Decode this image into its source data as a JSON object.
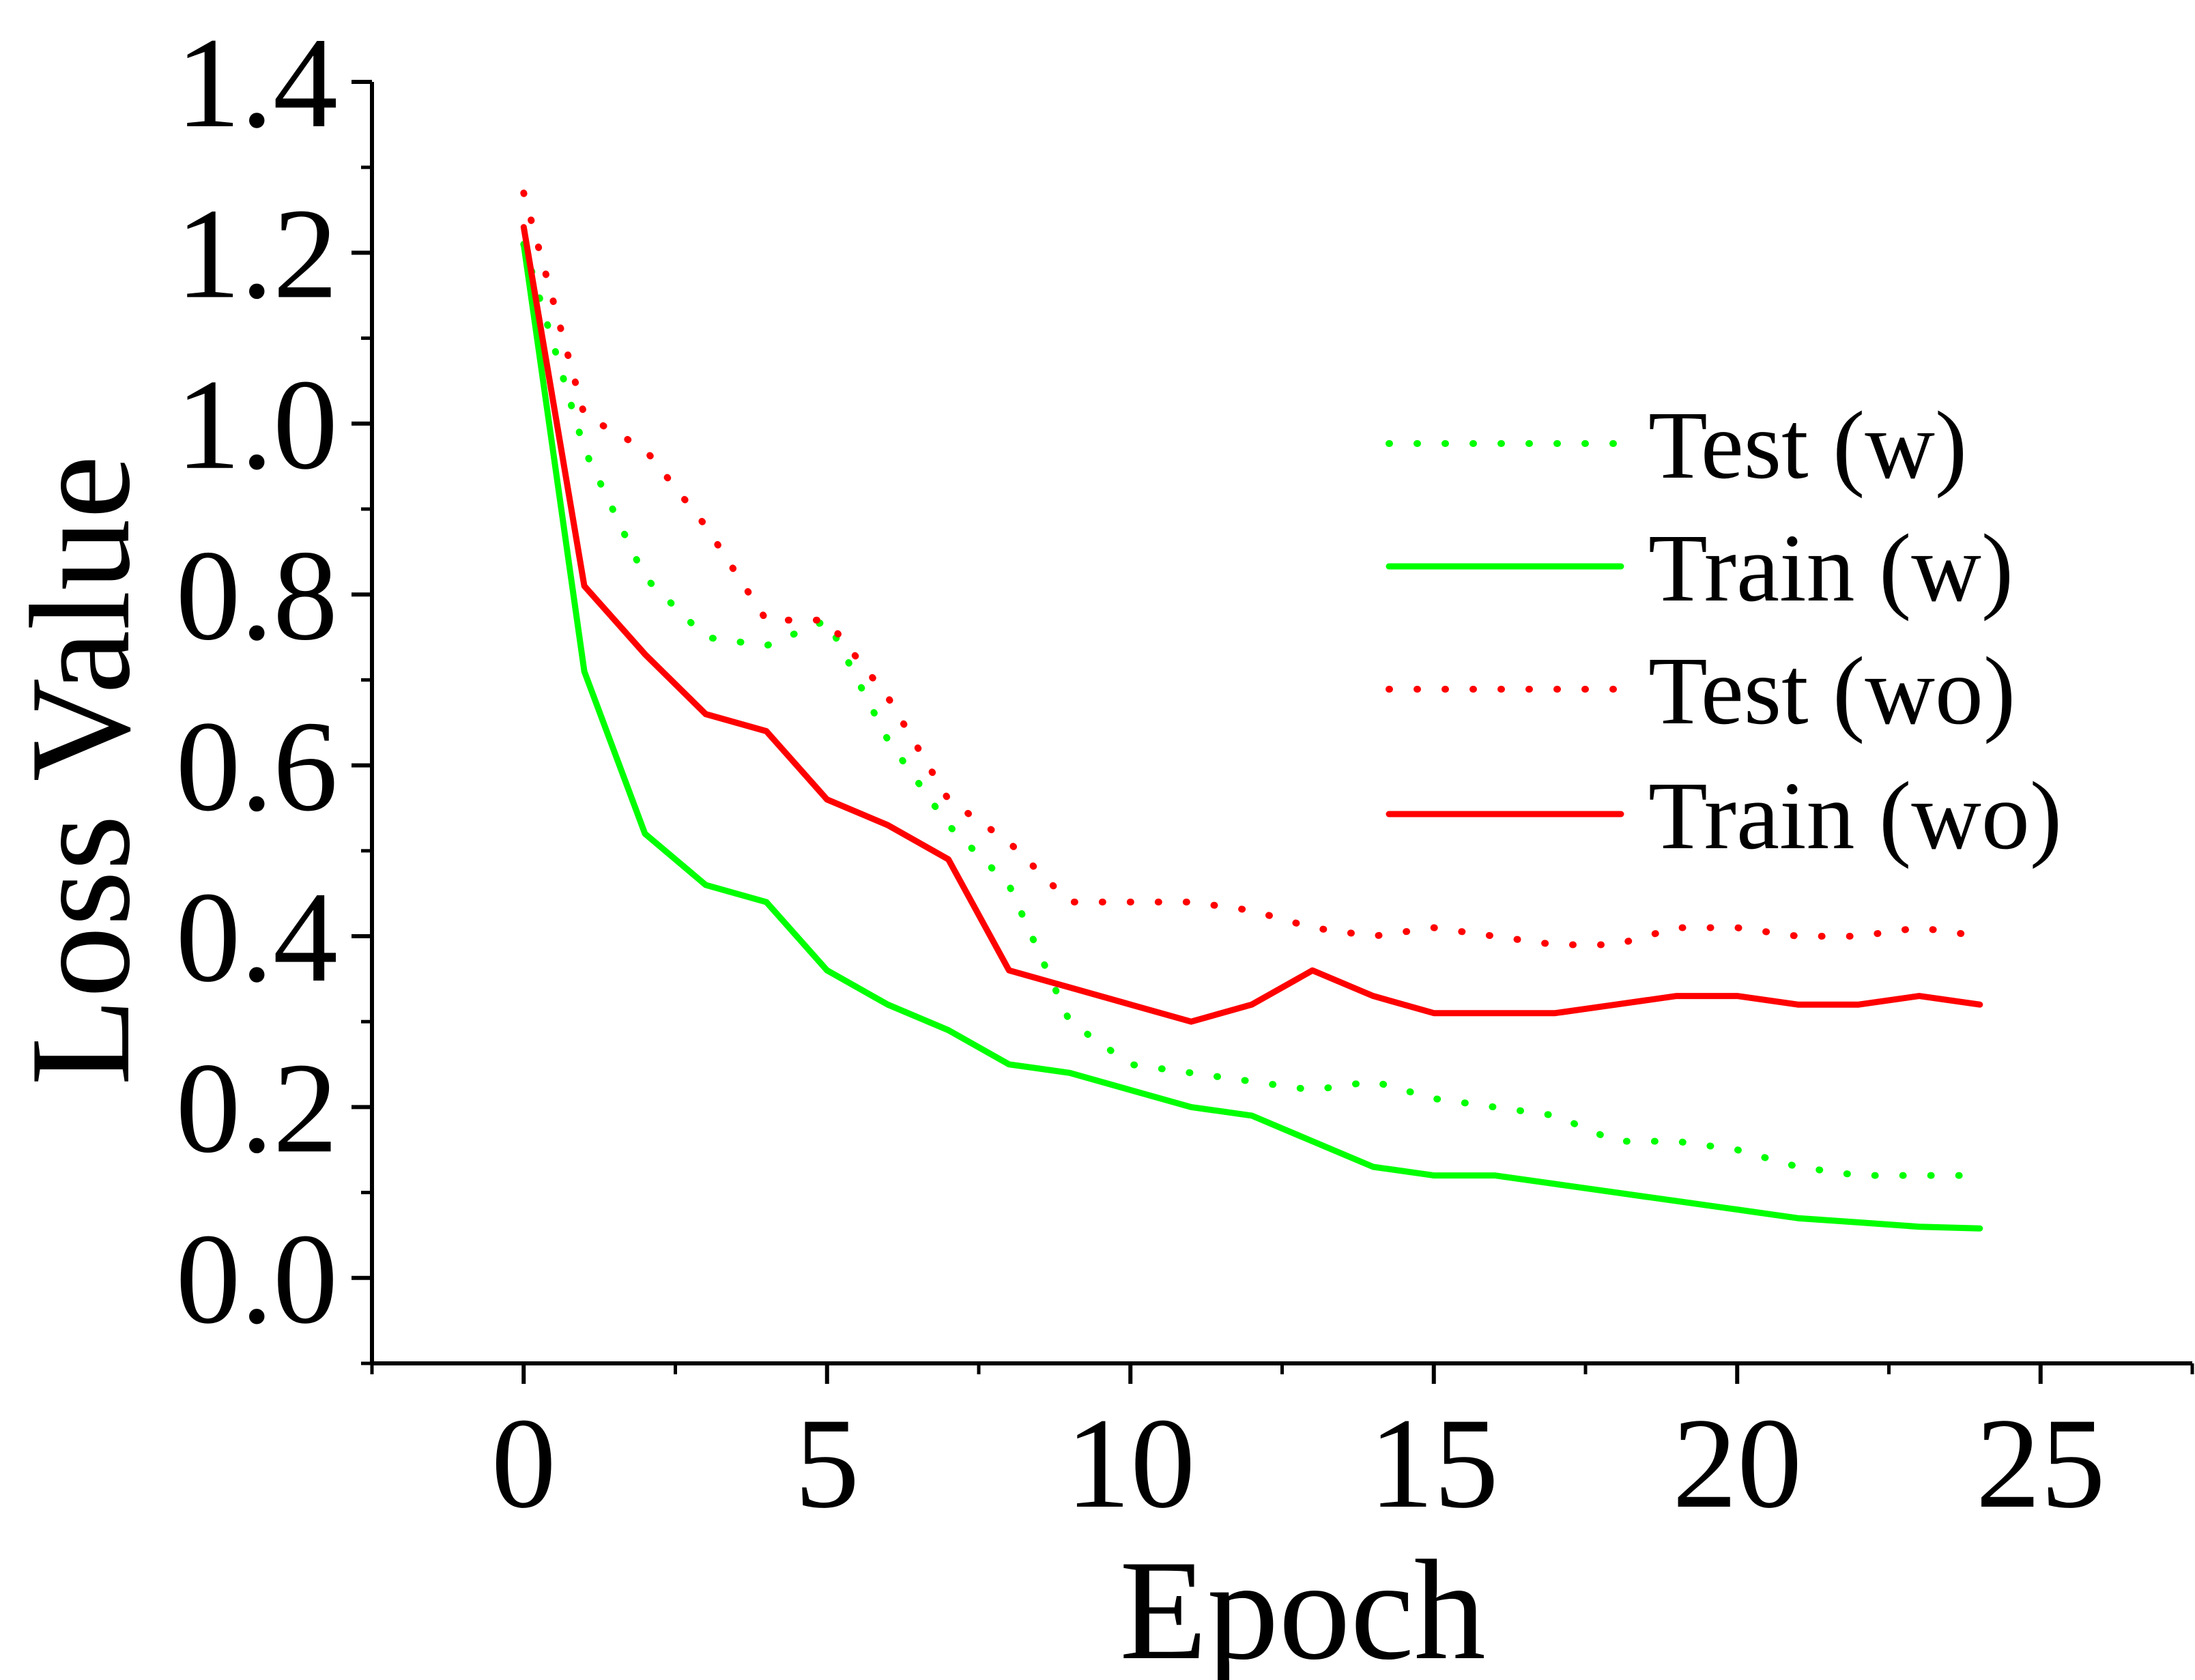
{
  "chart_data": {
    "type": "line",
    "title": "",
    "xlabel": "Epoch",
    "ylabel": "Loss Value",
    "xlim": [
      -2.5,
      27.5
    ],
    "ylim": [
      -0.1,
      1.4
    ],
    "xticks": [
      0,
      5,
      10,
      15,
      20,
      25
    ],
    "xtick_labels": [
      "0",
      "5",
      "10",
      "15",
      "20",
      "25"
    ],
    "yticks": [
      0.0,
      0.2,
      0.4,
      0.6,
      0.8,
      1.0,
      1.2,
      1.4
    ],
    "ytick_labels": [
      "0.0",
      "0.2",
      "0.4",
      "0.6",
      "0.8",
      "1.0",
      "1.2",
      "1.4"
    ],
    "grid": false,
    "legend_position": "top-right",
    "x": [
      0,
      1,
      2,
      3,
      4,
      5,
      6,
      7,
      8,
      9,
      10,
      11,
      12,
      13,
      14,
      15,
      16,
      17,
      18,
      19,
      20,
      21,
      22,
      23,
      24
    ],
    "series": [
      {
        "name": "Test (w)",
        "color": "#00ff00",
        "style": "dotted",
        "values": [
          1.21,
          0.97,
          0.82,
          0.75,
          0.74,
          0.77,
          0.63,
          0.53,
          0.46,
          0.3,
          0.25,
          0.24,
          0.23,
          0.22,
          0.23,
          0.21,
          0.2,
          0.19,
          0.16,
          0.16,
          0.15,
          0.13,
          0.12,
          0.12,
          0.12
        ]
      },
      {
        "name": "Train (w)",
        "color": "#00ff00",
        "style": "solid",
        "values": [
          1.21,
          0.71,
          0.52,
          0.46,
          0.44,
          0.36,
          0.32,
          0.29,
          0.25,
          0.24,
          0.22,
          0.2,
          0.19,
          0.16,
          0.13,
          0.12,
          0.12,
          0.11,
          0.1,
          0.09,
          0.08,
          0.07,
          0.065,
          0.06,
          0.058
        ]
      },
      {
        "name": "Test (wo)",
        "color": "#ff0000",
        "style": "dotted",
        "values": [
          1.27,
          1.01,
          0.97,
          0.88,
          0.77,
          0.77,
          0.68,
          0.56,
          0.51,
          0.44,
          0.44,
          0.44,
          0.43,
          0.41,
          0.4,
          0.41,
          0.4,
          0.39,
          0.39,
          0.41,
          0.41,
          0.4,
          0.4,
          0.41,
          0.4
        ]
      },
      {
        "name": "Train (wo)",
        "color": "#ff0000",
        "style": "solid",
        "values": [
          1.23,
          0.81,
          0.73,
          0.66,
          0.64,
          0.56,
          0.53,
          0.49,
          0.36,
          0.34,
          0.32,
          0.3,
          0.32,
          0.36,
          0.33,
          0.31,
          0.31,
          0.31,
          0.32,
          0.33,
          0.33,
          0.32,
          0.32,
          0.33,
          0.32
        ]
      }
    ]
  }
}
